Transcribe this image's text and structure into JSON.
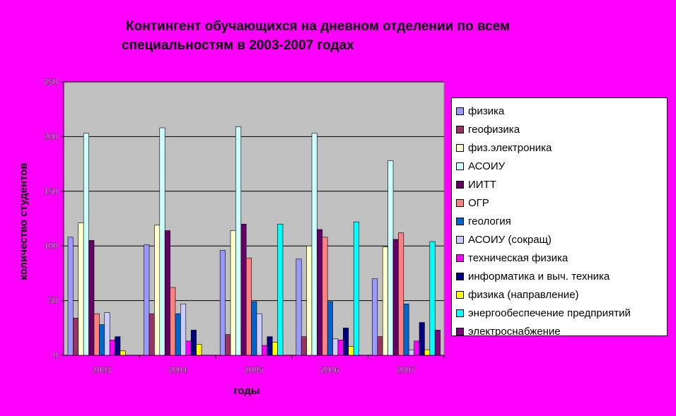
{
  "title_line1": "Контингент обучающихся на дневном отделении по всем",
  "title_line2": "специальностям в 2003-2007 годах",
  "chart_data": {
    "type": "bar",
    "title": "Контингент обучающихся на дневном отделении по всем специальностям в 2003-2007 годах",
    "xlabel": "годы",
    "ylabel": "количество студентов",
    "ylim": [
      0,
      250
    ],
    "yticks": [
      0,
      50,
      100,
      150,
      200,
      250
    ],
    "grid": true,
    "legend_position": "right",
    "categories": [
      "2003",
      "2004",
      "2005",
      "2006",
      "2007"
    ],
    "series": [
      {
        "name": "физика",
        "color": "#9999ff",
        "values": [
          108,
          101,
          96,
          88,
          70
        ]
      },
      {
        "name": "геофизика",
        "color": "#993366",
        "values": [
          34,
          38,
          19,
          17,
          17
        ]
      },
      {
        "name": "физ.электроника",
        "color": "#ffffcc",
        "values": [
          121,
          119,
          114,
          100,
          99
        ]
      },
      {
        "name": "АСОИУ",
        "color": "#ccffff",
        "values": [
          203,
          208,
          209,
          203,
          178
        ]
      },
      {
        "name": "ИИТТ",
        "color": "#660066",
        "values": [
          105,
          114,
          120,
          115,
          106
        ]
      },
      {
        "name": "ОГР",
        "color": "#ff8080",
        "values": [
          38,
          62,
          89,
          108,
          112
        ]
      },
      {
        "name": "геология",
        "color": "#0066cc",
        "values": [
          28,
          38,
          49,
          49,
          47
        ]
      },
      {
        "name": "АСОИУ (сокращ)",
        "color": "#ccccff",
        "values": [
          39,
          47,
          38,
          15,
          5
        ]
      },
      {
        "name": "техническая физика",
        "color": "#ff00ff",
        "values": [
          14,
          13,
          9,
          14,
          13
        ]
      },
      {
        "name": "информатика и выч. техника",
        "color": "#000080",
        "values": [
          17,
          23,
          17,
          25,
          30
        ]
      },
      {
        "name": "физика (направление)",
        "color": "#ffff00",
        "values": [
          4,
          10,
          12,
          8,
          5
        ]
      },
      {
        "name": "энергообеспечение предприятий",
        "color": "#00ffff",
        "values": [
          0,
          0,
          120,
          122,
          104
        ]
      },
      {
        "name": "электроснабжение",
        "color": "#800080",
        "values": [
          0,
          0,
          0,
          0,
          23
        ]
      }
    ]
  }
}
